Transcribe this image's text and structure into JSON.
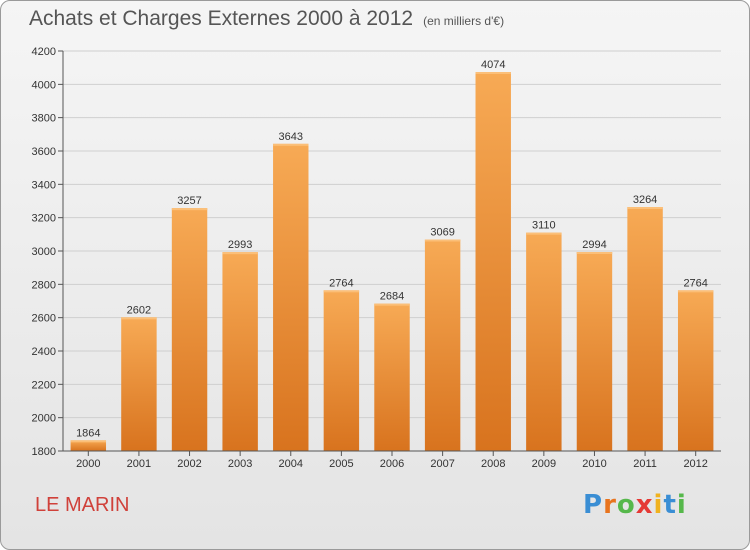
{
  "title": "Achats et Charges Externes 2000 à 2012",
  "subtitle": "(en milliers d'€)",
  "commune": "LE MARIN",
  "logo": "Proxiti",
  "colors": {
    "bar": "#f0923a",
    "bar_light": "#f7aa55",
    "bar_dark": "#d8731e",
    "grid": "#cfcfcf",
    "commune": "#d0413a"
  },
  "chart_data": {
    "type": "bar",
    "categories": [
      "2000",
      "2001",
      "2002",
      "2003",
      "2004",
      "2005",
      "2006",
      "2007",
      "2008",
      "2009",
      "2010",
      "2011",
      "2012"
    ],
    "values": [
      1864,
      2602,
      3257,
      2993,
      3643,
      2764,
      2684,
      3069,
      4074,
      3110,
      2994,
      3264,
      2764
    ],
    "title": "Achats et Charges Externes 2000 à 2012",
    "subtitle": "(en milliers d'€)",
    "ylim": [
      1800,
      4200
    ],
    "yticks": [
      1800,
      2000,
      2200,
      2400,
      2600,
      2800,
      3000,
      3200,
      3400,
      3600,
      3800,
      4000,
      4200
    ],
    "grid": true
  }
}
